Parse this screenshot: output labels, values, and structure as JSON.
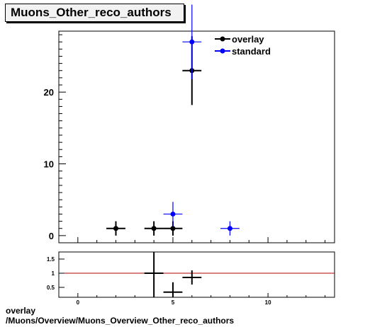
{
  "title": "Muons_Other_reco_authors",
  "footer": {
    "line1": "overlay",
    "line2": "/Muons/Overview/Muons_Overview_Other_reco_authors"
  },
  "colors": {
    "overlay": "#000000",
    "standard": "#0000ff",
    "ratio_line": "#b00000"
  },
  "chart_data": [
    {
      "type": "scatter",
      "xlim": [
        -1,
        13.5
      ],
      "ylim": [
        -1,
        28.5
      ],
      "yticks": [
        0,
        10,
        20
      ],
      "legend_position": "top-right",
      "series": [
        {
          "name": "overlay",
          "points": [
            {
              "x": 2,
              "y": 1,
              "yerr": 1
            },
            {
              "x": 4,
              "y": 1,
              "yerr": 1
            },
            {
              "x": 5,
              "y": 1,
              "yerr": 1
            },
            {
              "x": 6,
              "y": 23,
              "yerr": 4.8
            }
          ]
        },
        {
          "name": "standard",
          "points": [
            {
              "x": 5,
              "y": 3,
              "yerr": 1.7
            },
            {
              "x": 6,
              "y": 27,
              "yerr": 5.2
            },
            {
              "x": 8,
              "y": 1,
              "yerr": 1
            }
          ]
        }
      ]
    },
    {
      "type": "scatter",
      "xlim": [
        -1,
        13.5
      ],
      "ylim": [
        0.15,
        1.75
      ],
      "yticks": [
        "0.5",
        "1",
        "1.5"
      ],
      "xticks": [
        "0",
        "5",
        "10"
      ],
      "reference_line": 1,
      "points": [
        {
          "x": 4,
          "y": 1,
          "yerr": 1.4
        },
        {
          "x": 5,
          "y": 0.33,
          "yerr": 0.35
        },
        {
          "x": 6,
          "y": 0.85,
          "yerr": 0.25
        }
      ]
    }
  ]
}
